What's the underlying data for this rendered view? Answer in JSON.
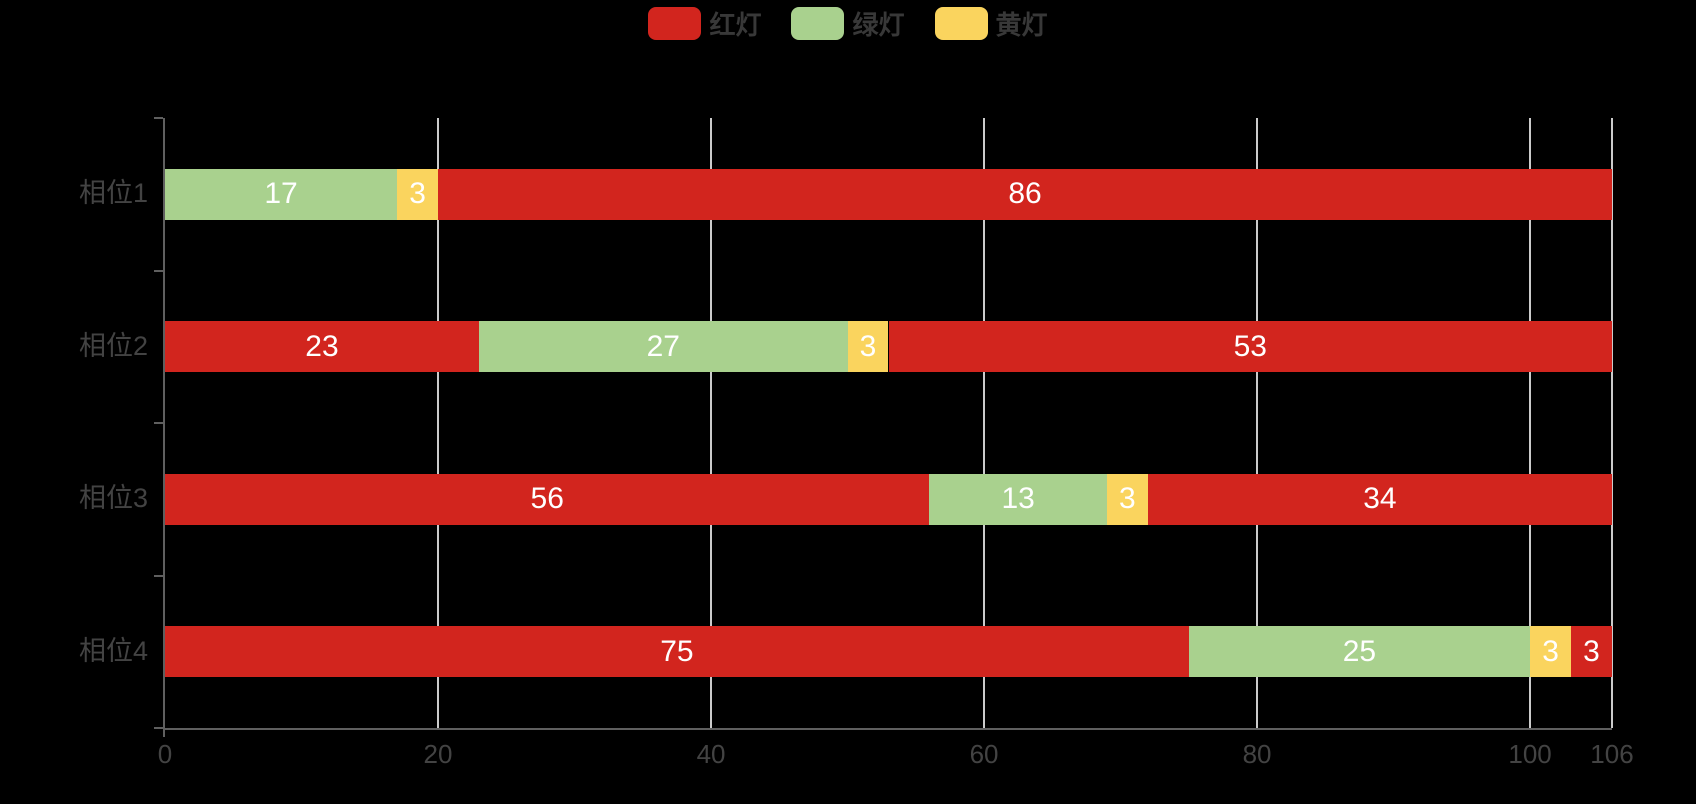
{
  "page": {
    "background": "#000000"
  },
  "legend": {
    "position": "top-center",
    "items": [
      {
        "label": "红灯",
        "color": "#d2251e"
      },
      {
        "label": "绿灯",
        "color": "#a9d18e"
      },
      {
        "label": "黄灯",
        "color": "#fad45e"
      }
    ]
  },
  "chart_data": {
    "type": "bar",
    "orientation": "horizontal",
    "stacked": true,
    "title": "",
    "xlabel": "",
    "ylabel": "",
    "categories": [
      "相位1",
      "相位2",
      "相位3",
      "相位4"
    ],
    "x_axis": {
      "min": 0,
      "max": 106,
      "ticks": [
        0,
        20,
        40,
        60,
        80,
        100,
        106
      ]
    },
    "grid": true,
    "legend_entries": [
      "红灯",
      "绿灯",
      "黄灯"
    ],
    "series_colors": {
      "红灯": "#d2251e",
      "绿灯": "#a9d18e",
      "黄灯": "#fad45e"
    },
    "value_labels_shown": true,
    "rows": [
      {
        "category": "相位1",
        "segments": [
          {
            "series": "绿灯",
            "value": 17
          },
          {
            "series": "黄灯",
            "value": 3
          },
          {
            "series": "红灯",
            "value": 86
          }
        ]
      },
      {
        "category": "相位2",
        "segments": [
          {
            "series": "红灯",
            "value": 23
          },
          {
            "series": "绿灯",
            "value": 27
          },
          {
            "series": "黄灯",
            "value": 3
          },
          {
            "series": "红灯",
            "value": 53
          }
        ]
      },
      {
        "category": "相位3",
        "segments": [
          {
            "series": "红灯",
            "value": 56
          },
          {
            "series": "绿灯",
            "value": 13
          },
          {
            "series": "黄灯",
            "value": 3
          },
          {
            "series": "红灯",
            "value": 34
          }
        ]
      },
      {
        "category": "相位4",
        "segments": [
          {
            "series": "红灯",
            "value": 75
          },
          {
            "series": "绿灯",
            "value": 25
          },
          {
            "series": "黄灯",
            "value": 3
          },
          {
            "series": "红灯",
            "value": 3
          }
        ]
      }
    ]
  },
  "colors": {
    "background": "#000000",
    "bar_label_text": "#ffffff",
    "axis_line": "#5f5f5f",
    "axis_label_text": "#434343",
    "gridline": "#cbcbcb",
    "legend_text": "#383838"
  }
}
